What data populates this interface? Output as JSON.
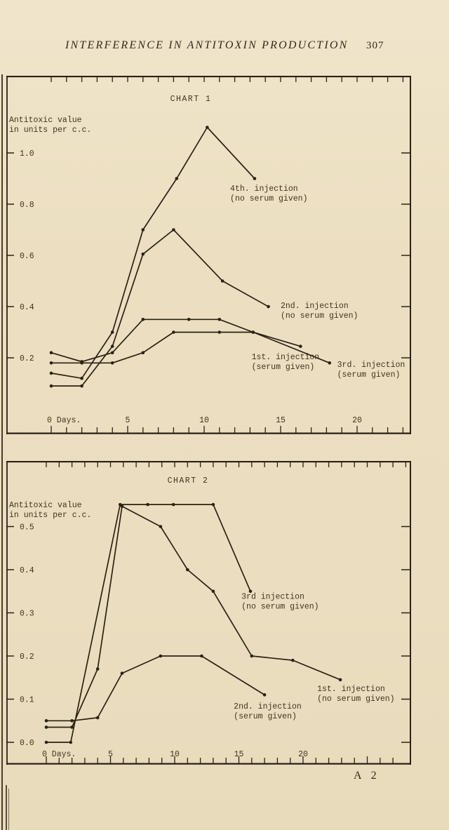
{
  "page": {
    "header": {
      "title": "INTERFERENCE IN ANTITOXIN PRODUCTION",
      "page_number": "307"
    },
    "signature_mark": "A 2",
    "colors": {
      "paper": "#ecdfc1",
      "ink": "#2b2114",
      "type_ink": "#41331f"
    }
  },
  "chart_data": [
    {
      "type": "line",
      "title": "CHART 1",
      "ylabel_lines": [
        "Antitoxic value",
        "in units per c.c."
      ],
      "xlabel": "Days",
      "xlim": [
        0,
        23
      ],
      "ylim": [
        0.04,
        1.22
      ],
      "grid": false,
      "x_ticks": [
        {
          "day": 0,
          "text": "0 Days."
        },
        {
          "day": 5,
          "text": "5"
        },
        {
          "day": 10,
          "text": "10"
        },
        {
          "day": 15,
          "text": "15"
        },
        {
          "day": 20,
          "text": "20"
        }
      ],
      "y_ticks": [
        {
          "value": 1.0,
          "text": "1.0"
        },
        {
          "value": 0.8,
          "text": "0.8"
        },
        {
          "value": 0.6,
          "text": "0.6"
        },
        {
          "value": 0.4,
          "text": "0.4"
        },
        {
          "value": 0.2,
          "text": "0.2"
        }
      ],
      "series": [
        {
          "name": "1st. injection (serum given)",
          "points": [
            [
              0,
              0.22
            ],
            [
              2,
              0.185
            ],
            [
              4,
              0.22
            ],
            [
              6,
              0.35
            ],
            [
              9,
              0.35
            ],
            [
              11,
              0.35
            ],
            [
              13.2,
              0.3
            ],
            [
              16.3,
              0.245
            ]
          ]
        },
        {
          "name": "2nd. injection (no serum given)",
          "points": [
            [
              0,
              0.09
            ],
            [
              2,
              0.09
            ],
            [
              4,
              0.245
            ],
            [
              6,
              0.605
            ],
            [
              8,
              0.7
            ],
            [
              11.2,
              0.5
            ],
            [
              14.2,
              0.4
            ]
          ]
        },
        {
          "name": "3rd. injection (serum given)",
          "points": [
            [
              0,
              0.18
            ],
            [
              2,
              0.18
            ],
            [
              4,
              0.18
            ],
            [
              6,
              0.22
            ],
            [
              8,
              0.3
            ],
            [
              11,
              0.3
            ],
            [
              13.2,
              0.3
            ],
            [
              18.2,
              0.18
            ]
          ]
        },
        {
          "name": "4th. injection (no serum given)",
          "points": [
            [
              0,
              0.14
            ],
            [
              2,
              0.12
            ],
            [
              4,
              0.3
            ],
            [
              6,
              0.7
            ],
            [
              8.2,
              0.9
            ],
            [
              10.2,
              1.1
            ],
            [
              13.3,
              0.9
            ]
          ]
        }
      ],
      "annotations": [
        {
          "lines": [
            "4th. injection",
            "(no serum given)"
          ],
          "day": 11.7,
          "value": 0.88
        },
        {
          "lines": [
            "2nd. injection",
            "(no serum given)"
          ],
          "day": 15.0,
          "value": 0.422
        },
        {
          "lines": [
            "1st. injection",
            "(serum given)"
          ],
          "day": 13.1,
          "value": 0.222
        },
        {
          "lines": [
            "3rd. injection",
            "(serum given)"
          ],
          "day": 18.7,
          "value": 0.192
        }
      ]
    },
    {
      "type": "line",
      "title": "CHART 2",
      "ylabel_lines": [
        "Antitoxic value",
        "in units per c.c."
      ],
      "xlabel": "Days",
      "xlim": [
        0,
        28
      ],
      "ylim": [
        0.0,
        0.62
      ],
      "grid": false,
      "x_ticks": [
        {
          "day": 0,
          "text": "0 Days."
        },
        {
          "day": 5,
          "text": "5"
        },
        {
          "day": 10,
          "text": "10"
        },
        {
          "day": 15,
          "text": "15"
        },
        {
          "day": 20,
          "text": "20"
        }
      ],
      "y_ticks": [
        {
          "value": 0.5,
          "text": "0.5"
        },
        {
          "value": 0.4,
          "text": "0.4"
        },
        {
          "value": 0.3,
          "text": "0.3"
        },
        {
          "value": 0.2,
          "text": "0.2"
        },
        {
          "value": 0.1,
          "text": "0.1"
        },
        {
          "value": 0.0,
          "text": "0.0"
        }
      ],
      "series": [
        {
          "name": "1st. injection (no serum given)",
          "points": [
            [
              0,
              0.035
            ],
            [
              2,
              0.035
            ],
            [
              4,
              0.17
            ],
            [
              5.9,
              0.547
            ],
            [
              8.9,
              0.5
            ],
            [
              11,
              0.4
            ],
            [
              13,
              0.35
            ],
            [
              16,
              0.2
            ],
            [
              19.2,
              0.19
            ],
            [
              22.9,
              0.145
            ]
          ]
        },
        {
          "name": "2nd. injection (serum given)",
          "points": [
            [
              0,
              0.05
            ],
            [
              2,
              0.05
            ],
            [
              4,
              0.057
            ],
            [
              5.9,
              0.16
            ],
            [
              8.9,
              0.2
            ],
            [
              12.1,
              0.2
            ],
            [
              17,
              0.11
            ]
          ]
        },
        {
          "name": "3rd injection (no serum given)",
          "points": [
            [
              0,
              0.0
            ],
            [
              1.9,
              0.0
            ],
            [
              5.75,
              0.551
            ],
            [
              7.9,
              0.551
            ],
            [
              9.9,
              0.551
            ],
            [
              13,
              0.551
            ],
            [
              15.9,
              0.35
            ]
          ]
        }
      ],
      "annotations": [
        {
          "lines": [
            "3rd  injection",
            "(no serum given)"
          ],
          "day": 15.2,
          "value": 0.349
        },
        {
          "lines": [
            "2nd. injection",
            "(serum given)"
          ],
          "day": 14.6,
          "value": 0.094
        },
        {
          "lines": [
            "1st. injection",
            "(no serum given)"
          ],
          "day": 21.1,
          "value": 0.135
        }
      ]
    }
  ]
}
